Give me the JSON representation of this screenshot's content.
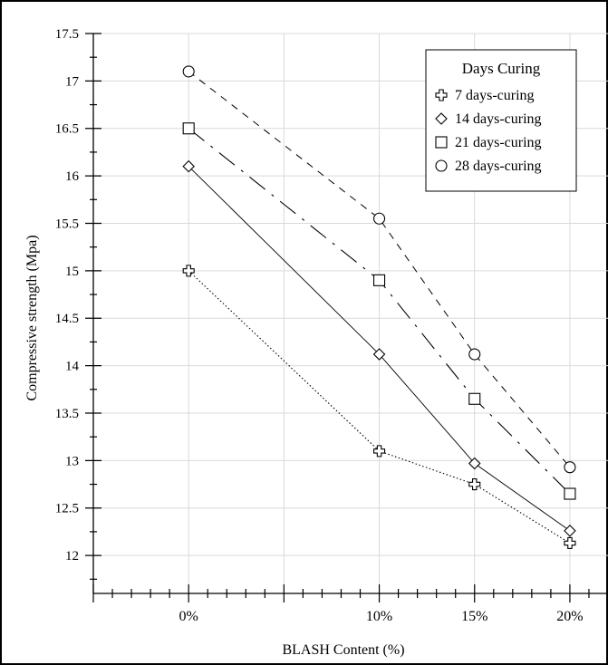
{
  "chart_data": {
    "type": "line",
    "xlabel": "BLASH Content (%)",
    "ylabel": "Compressive strength (Mpa)",
    "x_tick_labels": [
      {
        "label": "0%",
        "x": 0
      },
      {
        "label": "10%",
        "x": 10
      },
      {
        "label": "15%",
        "x": 15
      },
      {
        "label": "20%",
        "x": 20
      }
    ],
    "xlim": [
      -5,
      22
    ],
    "ylim": [
      11.6,
      17.5
    ],
    "y_ticks": [
      "12",
      "12.5",
      "13",
      "13.5",
      "14",
      "14.5",
      "15",
      "15.5",
      "16",
      "16.5",
      "17",
      "17.5"
    ],
    "grid": true,
    "legend": {
      "title": "Days Curing",
      "position": "top-right"
    },
    "series": [
      {
        "name": "7 days-curing",
        "marker": "cross",
        "dash": "1.5,2.5",
        "x": [
          0,
          10,
          15,
          20
        ],
        "y": [
          15.0,
          13.1,
          12.75,
          12.13
        ]
      },
      {
        "name": "14 days-curing",
        "marker": "diamond",
        "dash": "",
        "x": [
          0,
          10,
          15,
          20
        ],
        "y": [
          16.1,
          14.12,
          12.97,
          12.26
        ]
      },
      {
        "name": "21 days-curing",
        "marker": "square",
        "dash": "22,9,3,9",
        "x": [
          0,
          10,
          15,
          20
        ],
        "y": [
          16.5,
          14.9,
          13.65,
          12.65
        ]
      },
      {
        "name": "28 days-curing",
        "marker": "circle",
        "dash": "8,7",
        "x": [
          0,
          10,
          15,
          20
        ],
        "y": [
          17.1,
          15.55,
          14.12,
          12.93
        ]
      }
    ]
  }
}
